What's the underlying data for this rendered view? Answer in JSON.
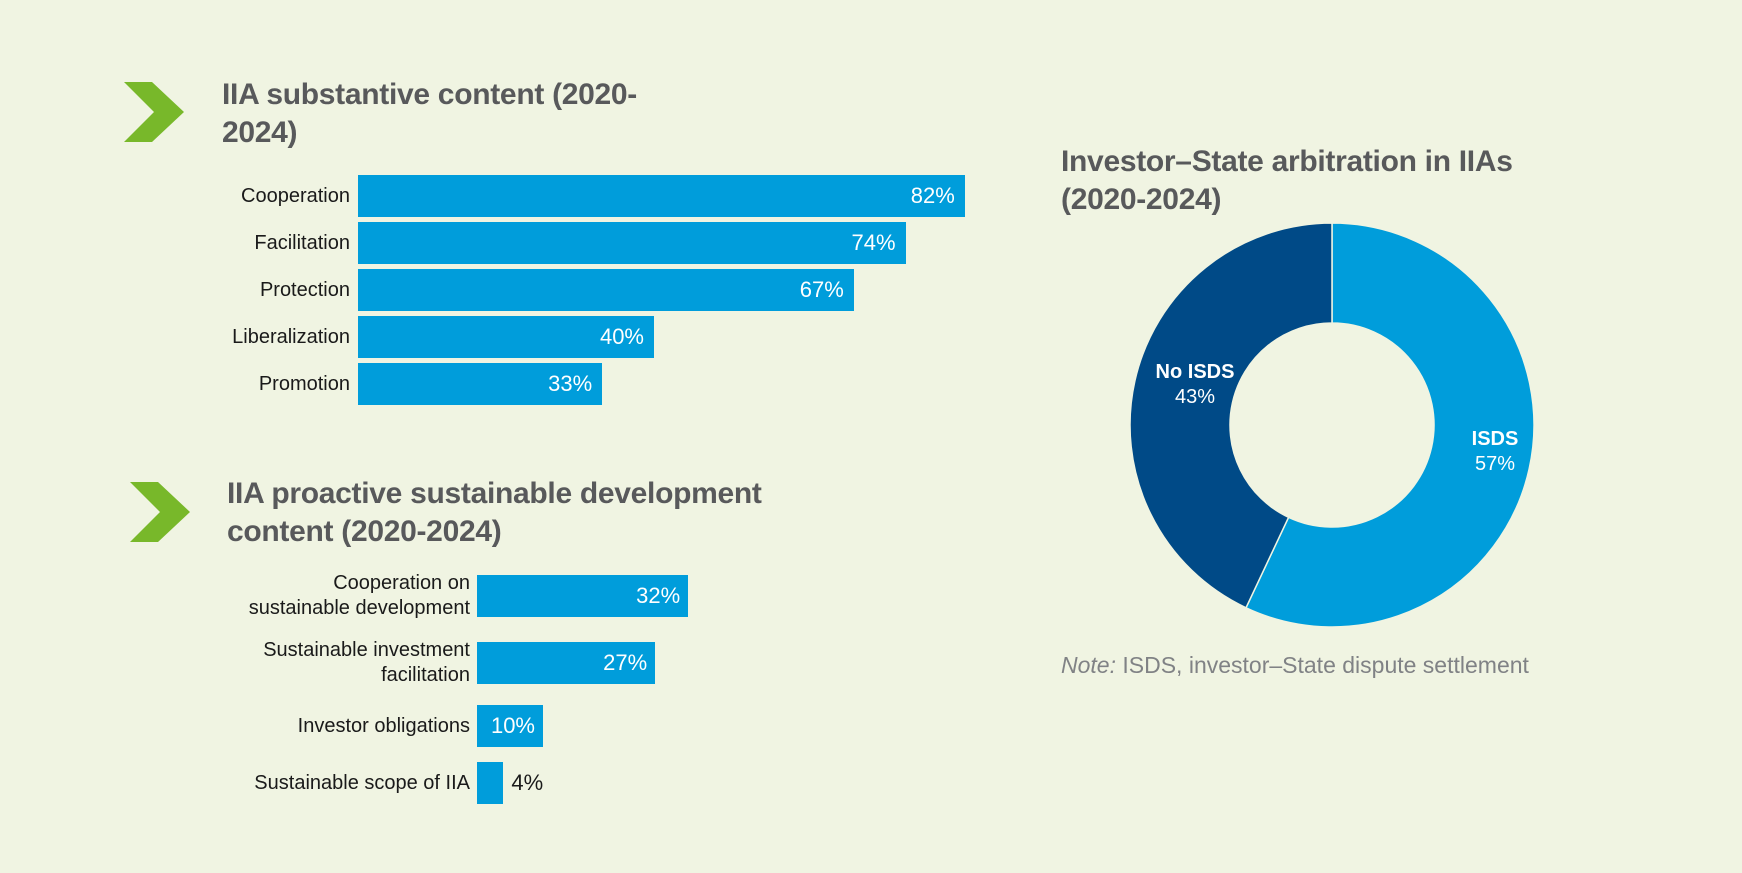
{
  "colors": {
    "background": "#f0f4e2",
    "bar": "#009ddb",
    "isds": "#009ddb",
    "no_isds": "#004a87",
    "chevron": "#78b82a",
    "title": "#58595b",
    "note": "#808285"
  },
  "icons": {
    "section_marker": "chevron-right-icon"
  },
  "chart_data": [
    {
      "type": "bar",
      "orientation": "horizontal",
      "title": "IIA substantive content (2020-2024)",
      "categories": [
        "Cooperation",
        "Facilitation",
        "Protection",
        "Liberalization",
        "Promotion"
      ],
      "values": [
        82,
        74,
        67,
        40,
        33
      ],
      "value_labels": [
        "82%",
        "74%",
        "67%",
        "40%",
        "33%"
      ],
      "unit": "%",
      "xlim": [
        0,
        100
      ],
      "grid": false,
      "legend": "none"
    },
    {
      "type": "bar",
      "orientation": "horizontal",
      "title": "IIA proactive sustainable development content (2020-2024)",
      "categories": [
        "Cooperation on sustainable development",
        "Sustainable investment facilitation",
        "Investor obligations",
        "Sustainable scope of IIA"
      ],
      "category_lines": [
        [
          "Cooperation on",
          "sustainable development"
        ],
        [
          "Sustainable investment",
          "facilitation"
        ],
        [
          "Investor obligations"
        ],
        [
          "Sustainable scope of IIA"
        ]
      ],
      "values": [
        32,
        27,
        10,
        4
      ],
      "value_labels": [
        "32%",
        "27%",
        "10%",
        "4%"
      ],
      "unit": "%",
      "xlim": [
        0,
        100
      ],
      "grid": false,
      "legend": "none"
    },
    {
      "type": "pie",
      "donut": true,
      "title": "Investor–State arbitration in IIAs (2020-2024)",
      "categories": [
        "ISDS",
        "No ISDS"
      ],
      "values": [
        57,
        43
      ],
      "value_labels": [
        "57%",
        "43%"
      ],
      "unit": "%",
      "legend": "none",
      "note_label": "Note:",
      "note_text": " ISDS, investor–State dispute settlement"
    }
  ]
}
